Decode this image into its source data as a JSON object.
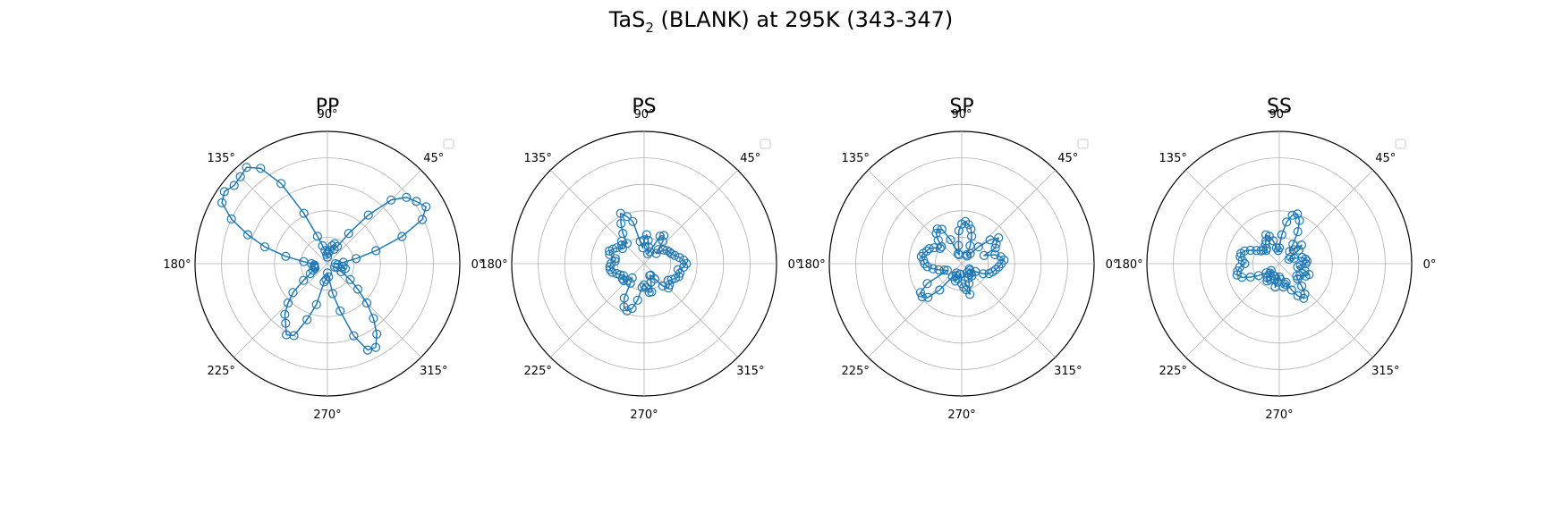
{
  "figure": {
    "title_main": "TaS",
    "title_sub": "2",
    "title_rest": " (BLANK) at 295K (343-347)"
  },
  "chart_data": [
    {
      "type": "polar-line",
      "title": "PP",
      "theta_tick_labels": [
        "0°",
        "45°",
        "90°",
        "135°",
        "180°",
        "225°",
        "270°",
        "315°"
      ],
      "rmax": 1.0,
      "rings": [
        0.2,
        0.4,
        0.6,
        0.8,
        1.0
      ],
      "legend": "upper right (empty)",
      "series": [
        {
          "color": "#1f77b4",
          "theta_deg": [
            0,
            5,
            10,
            15,
            20,
            25,
            30,
            35,
            40,
            45,
            50,
            55,
            60,
            65,
            70,
            75,
            80,
            85,
            90,
            95,
            100,
            105,
            110,
            115,
            120,
            125,
            130,
            135,
            140,
            145,
            150,
            155,
            160,
            165,
            170,
            175,
            180,
            185,
            190,
            195,
            200,
            205,
            210,
            215,
            220,
            225,
            230,
            235,
            240,
            245,
            250,
            255,
            260,
            265,
            270,
            275,
            280,
            285,
            290,
            295,
            300,
            305,
            310,
            315,
            320,
            325,
            330,
            335,
            340,
            345,
            350,
            355
          ],
          "r": [
            0.06,
            0.12,
            0.22,
            0.38,
            0.6,
            0.79,
            0.86,
            0.82,
            0.78,
            0.68,
            0.48,
            0.28,
            0.15,
            0.12,
            0.16,
            0.14,
            0.1,
            0.08,
            0.05,
            0.07,
            0.1,
            0.14,
            0.22,
            0.42,
            0.7,
            0.88,
            0.95,
            0.93,
            0.92,
            0.95,
            0.92,
            0.8,
            0.64,
            0.49,
            0.32,
            0.18,
            0.12,
            0.1,
            0.1,
            0.1,
            0.1,
            0.12,
            0.15,
            0.22,
            0.34,
            0.42,
            0.5,
            0.55,
            0.62,
            0.6,
            0.45,
            0.32,
            0.14,
            0.12,
            0.07,
            0.1,
            0.23,
            0.37,
            0.58,
            0.72,
            0.73,
            0.65,
            0.54,
            0.42,
            0.3,
            0.21,
            0.12,
            0.06,
            0.08,
            0.14,
            0.12,
            0.08
          ]
        }
      ]
    },
    {
      "type": "polar-line",
      "title": "PS",
      "theta_tick_labels": [
        "0°",
        "45°",
        "90°",
        "135°",
        "180°",
        "225°",
        "270°",
        "315°"
      ],
      "rmax": 1.0,
      "rings": [
        0.2,
        0.4,
        0.6,
        0.8,
        1.0
      ],
      "legend": "upper right (empty)",
      "series": [
        {
          "color": "#1f77b4",
          "theta_deg": [
            0,
            5,
            10,
            15,
            20,
            25,
            30,
            35,
            40,
            45,
            50,
            55,
            60,
            65,
            70,
            75,
            80,
            85,
            90,
            95,
            100,
            105,
            110,
            115,
            120,
            125,
            130,
            135,
            140,
            145,
            150,
            155,
            160,
            165,
            170,
            175,
            180,
            185,
            190,
            195,
            200,
            205,
            210,
            215,
            220,
            225,
            230,
            235,
            240,
            245,
            250,
            255,
            260,
            265,
            270,
            275,
            280,
            285,
            290,
            295,
            300,
            305,
            310,
            315,
            320,
            325,
            330,
            335,
            340,
            345,
            350,
            355
          ],
          "r": [
            0.32,
            0.3,
            0.27,
            0.24,
            0.22,
            0.21,
            0.2,
            0.18,
            0.12,
            0.15,
            0.22,
            0.26,
            0.24,
            0.1,
            0.08,
            0.13,
            0.18,
            0.22,
            0.18,
            0.12,
            0.17,
            0.33,
            0.38,
            0.42,
            0.35,
            0.28,
            0.2,
            0.24,
            0.22,
            0.2,
            0.24,
            0.26,
            0.28,
            0.27,
            0.22,
            0.22,
            0.25,
            0.26,
            0.26,
            0.25,
            0.22,
            0.2,
            0.18,
            0.2,
            0.2,
            0.18,
            0.14,
            0.18,
            0.3,
            0.36,
            0.38,
            0.35,
            0.28,
            0.18,
            0.16,
            0.18,
            0.22,
            0.22,
            0.15,
            0.1,
            0.1,
            0.14,
            0.22,
            0.26,
            0.25,
            0.22,
            0.24,
            0.26,
            0.28,
            0.28,
            0.26,
            0.3
          ]
        }
      ]
    },
    {
      "type": "polar-line",
      "title": "SP",
      "theta_tick_labels": [
        "0°",
        "45°",
        "90°",
        "135°",
        "180°",
        "225°",
        "270°",
        "315°"
      ],
      "rmax": 1.0,
      "rings": [
        0.2,
        0.4,
        0.6,
        0.8,
        1.0
      ],
      "legend": "upper right (empty)",
      "series": [
        {
          "color": "#1f77b4",
          "theta_deg": [
            0,
            5,
            10,
            15,
            20,
            25,
            30,
            35,
            40,
            45,
            50,
            55,
            60,
            65,
            70,
            75,
            80,
            85,
            90,
            95,
            100,
            105,
            110,
            115,
            120,
            125,
            130,
            135,
            140,
            145,
            150,
            155,
            160,
            165,
            170,
            175,
            180,
            185,
            190,
            195,
            200,
            205,
            210,
            215,
            220,
            225,
            230,
            235,
            240,
            245,
            250,
            255,
            260,
            265,
            270,
            275,
            280,
            285,
            290,
            295,
            300,
            305,
            310,
            315,
            320,
            325,
            330,
            335,
            340,
            345,
            350,
            355
          ],
          "r": [
            0.3,
            0.32,
            0.3,
            0.26,
            0.18,
            0.28,
            0.3,
            0.34,
            0.28,
            0.18,
            0.1,
            0.07,
            0.08,
            0.15,
            0.22,
            0.27,
            0.3,
            0.32,
            0.3,
            0.25,
            0.14,
            0.07,
            0.08,
            0.2,
            0.3,
            0.32,
            0.3,
            0.25,
            0.2,
            0.2,
            0.24,
            0.27,
            0.28,
            0.3,
            0.31,
            0.29,
            0.28,
            0.26,
            0.22,
            0.18,
            0.14,
            0.12,
            0.3,
            0.38,
            0.39,
            0.36,
            0.26,
            0.12,
            0.08,
            0.1,
            0.14,
            0.12,
            0.08,
            0.08,
            0.15,
            0.18,
            0.2,
            0.24,
            0.16,
            0.12,
            0.08,
            0.1,
            0.12,
            0.1,
            0.08,
            0.07,
            0.12,
            0.18,
            0.22,
            0.24,
            0.26,
            0.28
          ]
        }
      ]
    },
    {
      "type": "polar-line",
      "title": "SS",
      "theta_tick_labels": [
        "0°",
        "45°",
        "90°",
        "135°",
        "180°",
        "225°",
        "270°",
        "315°"
      ],
      "rmax": 1.0,
      "rings": [
        0.2,
        0.4,
        0.6,
        0.8,
        1.0
      ],
      "legend": "upper right (empty)",
      "series": [
        {
          "color": "#1f77b4",
          "theta_deg": [
            0,
            5,
            10,
            15,
            20,
            25,
            30,
            35,
            40,
            45,
            50,
            55,
            60,
            65,
            70,
            75,
            80,
            85,
            90,
            95,
            100,
            105,
            110,
            115,
            120,
            125,
            130,
            135,
            140,
            145,
            150,
            155,
            160,
            165,
            170,
            175,
            180,
            185,
            190,
            195,
            200,
            205,
            210,
            215,
            220,
            225,
            230,
            235,
            240,
            245,
            250,
            255,
            260,
            265,
            270,
            275,
            280,
            285,
            290,
            295,
            300,
            305,
            310,
            315,
            320,
            325,
            330,
            335,
            340,
            345,
            350,
            355
          ],
          "r": [
            0.2,
            0.21,
            0.2,
            0.18,
            0.12,
            0.08,
            0.1,
            0.18,
            0.22,
            0.15,
            0.12,
            0.18,
            0.28,
            0.36,
            0.4,
            0.38,
            0.32,
            0.22,
            0.12,
            0.1,
            0.12,
            0.18,
            0.22,
            0.24,
            0.2,
            0.18,
            0.15,
            0.14,
            0.16,
            0.17,
            0.2,
            0.24,
            0.28,
            0.3,
            0.3,
            0.28,
            0.26,
            0.3,
            0.32,
            0.33,
            0.3,
            0.24,
            0.18,
            0.12,
            0.08,
            0.1,
            0.14,
            0.16,
            0.14,
            0.1,
            0.1,
            0.12,
            0.18,
            0.14,
            0.1,
            0.12,
            0.18,
            0.16,
            0.15,
            0.22,
            0.28,
            0.32,
            0.3,
            0.24,
            0.18,
            0.16,
            0.18,
            0.22,
            0.24,
            0.2,
            0.14,
            0.16
          ]
        }
      ]
    }
  ]
}
